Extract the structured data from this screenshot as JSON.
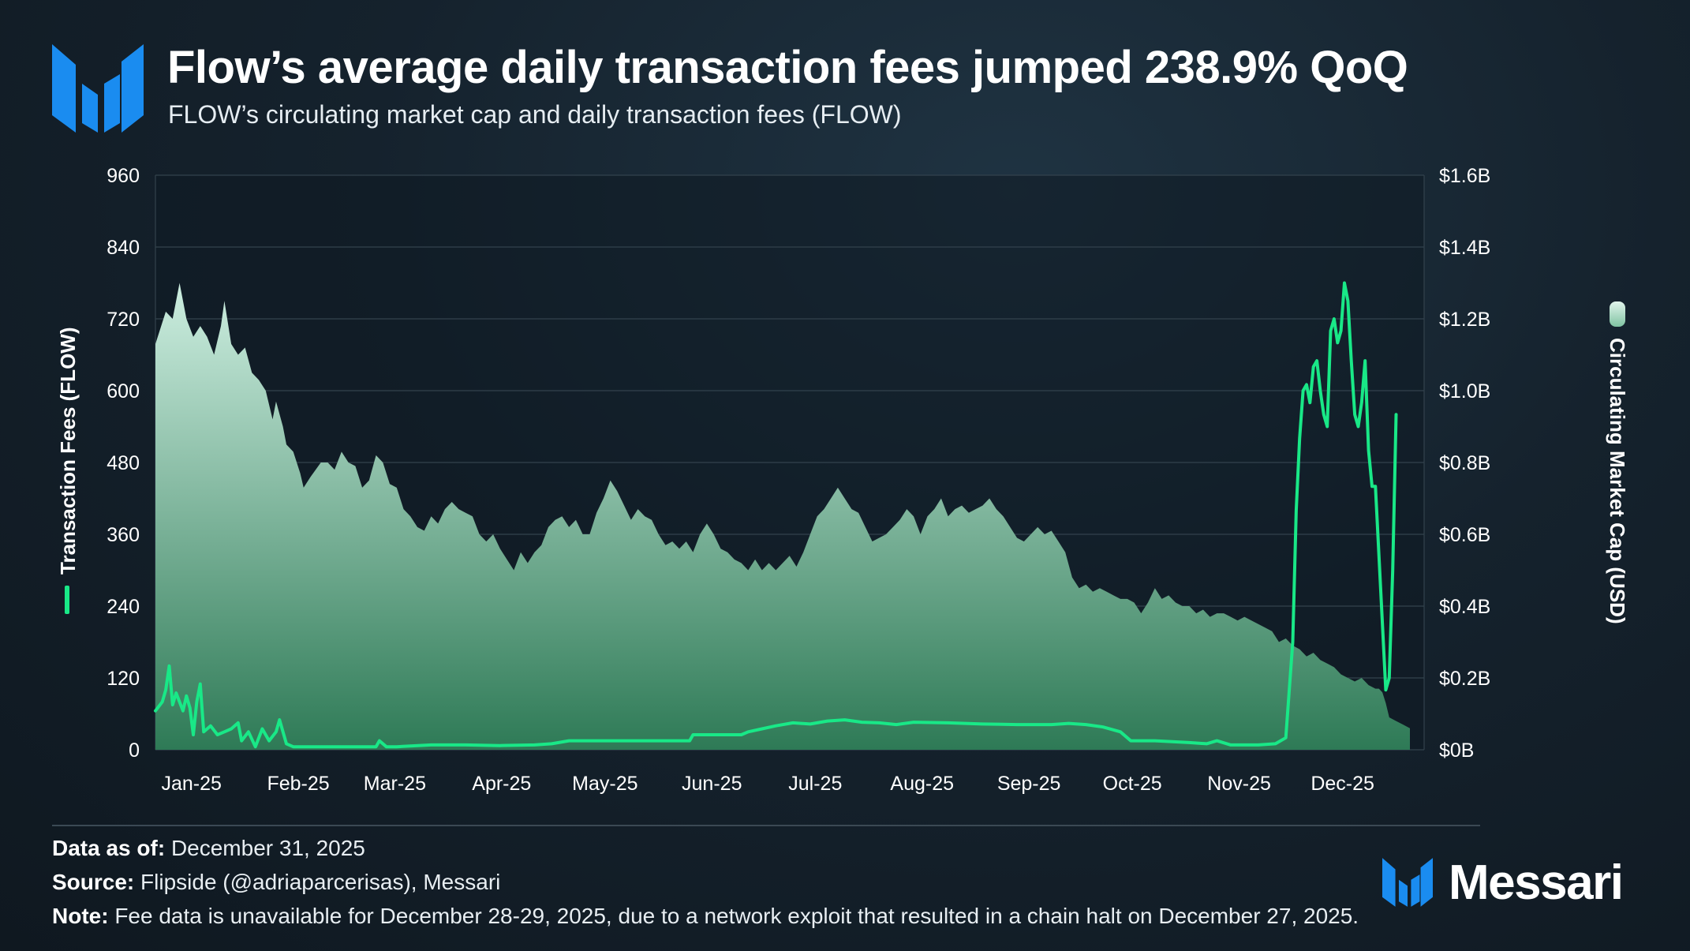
{
  "header": {
    "title": "Flow’s average daily transaction fees jumped 238.9% QoQ",
    "subtitle": "FLOW’s circulating market cap and daily transaction fees (FLOW)"
  },
  "colors": {
    "fees_line": "#19e887",
    "area_top": "#cdeee0",
    "area_bottom": "#2e7a56",
    "brand_blue": "#1a8cf0"
  },
  "icons": {
    "logo": "messari-logo-icon",
    "legend_fees": "line-legend-icon",
    "legend_mcap": "area-legend-icon"
  },
  "chart_data": {
    "type": "line+area",
    "title": "FLOW’s circulating market cap and daily transaction fees (FLOW)",
    "x_tick_labels": [
      "Jan-25",
      "Feb-25",
      "Mar-25",
      "Apr-25",
      "May-25",
      "Jun-25",
      "Jul-25",
      "Aug-25",
      "Sep-25",
      "Oct-25",
      "Nov-25",
      "Dec-25"
    ],
    "x_range_days": [
      0,
      364
    ],
    "y_left": {
      "label": "Transaction Fees (FLOW)",
      "range": [
        0,
        960
      ],
      "ticks": [
        "960",
        "840",
        "720",
        "600",
        "480",
        "360",
        "240",
        "120",
        "0"
      ]
    },
    "y_right": {
      "label": "Circulating Market Cap (USD)",
      "range": [
        0,
        1.6
      ],
      "unit": "$B",
      "ticks": [
        "$1.6B",
        "$1.4B",
        "$1.2B",
        "$1.0B",
        "$0.8B",
        "$0.6B",
        "$0.4B",
        "$0.2B",
        "$0B"
      ]
    },
    "series": [
      {
        "name": "Circulating Market Cap (USD)",
        "axis": "right",
        "type": "area",
        "unit": "USD billions",
        "points": [
          [
            0,
            1.13
          ],
          [
            3,
            1.22
          ],
          [
            5,
            1.2
          ],
          [
            6,
            1.25
          ],
          [
            7,
            1.3
          ],
          [
            9,
            1.2
          ],
          [
            11,
            1.15
          ],
          [
            13,
            1.18
          ],
          [
            15,
            1.15
          ],
          [
            17,
            1.1
          ],
          [
            19,
            1.18
          ],
          [
            20,
            1.25
          ],
          [
            22,
            1.13
          ],
          [
            24,
            1.1
          ],
          [
            26,
            1.12
          ],
          [
            28,
            1.05
          ],
          [
            30,
            1.03
          ],
          [
            32,
            1.0
          ],
          [
            34,
            0.92
          ],
          [
            35,
            0.97
          ],
          [
            37,
            0.9
          ],
          [
            38,
            0.85
          ],
          [
            40,
            0.83
          ],
          [
            42,
            0.77
          ],
          [
            43,
            0.73
          ],
          [
            45,
            0.76
          ],
          [
            48,
            0.8
          ],
          [
            50,
            0.8
          ],
          [
            52,
            0.78
          ],
          [
            54,
            0.83
          ],
          [
            56,
            0.8
          ],
          [
            58,
            0.79
          ],
          [
            60,
            0.73
          ],
          [
            62,
            0.75
          ],
          [
            64,
            0.82
          ],
          [
            66,
            0.8
          ],
          [
            68,
            0.74
          ],
          [
            70,
            0.73
          ],
          [
            72,
            0.67
          ],
          [
            74,
            0.65
          ],
          [
            76,
            0.62
          ],
          [
            78,
            0.61
          ],
          [
            80,
            0.65
          ],
          [
            82,
            0.63
          ],
          [
            84,
            0.67
          ],
          [
            86,
            0.69
          ],
          [
            88,
            0.67
          ],
          [
            90,
            0.66
          ],
          [
            92,
            0.65
          ],
          [
            94,
            0.6
          ],
          [
            96,
            0.58
          ],
          [
            98,
            0.6
          ],
          [
            100,
            0.56
          ],
          [
            102,
            0.53
          ],
          [
            104,
            0.5
          ],
          [
            106,
            0.55
          ],
          [
            108,
            0.52
          ],
          [
            110,
            0.55
          ],
          [
            112,
            0.57
          ],
          [
            114,
            0.62
          ],
          [
            116,
            0.64
          ],
          [
            118,
            0.65
          ],
          [
            120,
            0.62
          ],
          [
            122,
            0.64
          ],
          [
            124,
            0.6
          ],
          [
            126,
            0.6
          ],
          [
            128,
            0.66
          ],
          [
            130,
            0.7
          ],
          [
            132,
            0.75
          ],
          [
            134,
            0.72
          ],
          [
            136,
            0.68
          ],
          [
            138,
            0.64
          ],
          [
            140,
            0.67
          ],
          [
            142,
            0.65
          ],
          [
            144,
            0.64
          ],
          [
            146,
            0.6
          ],
          [
            148,
            0.57
          ],
          [
            150,
            0.58
          ],
          [
            152,
            0.56
          ],
          [
            154,
            0.58
          ],
          [
            156,
            0.55
          ],
          [
            158,
            0.6
          ],
          [
            160,
            0.63
          ],
          [
            162,
            0.6
          ],
          [
            164,
            0.56
          ],
          [
            166,
            0.55
          ],
          [
            168,
            0.53
          ],
          [
            170,
            0.52
          ],
          [
            172,
            0.5
          ],
          [
            174,
            0.53
          ],
          [
            176,
            0.5
          ],
          [
            178,
            0.52
          ],
          [
            180,
            0.5
          ],
          [
            182,
            0.52
          ],
          [
            184,
            0.54
          ],
          [
            186,
            0.51
          ],
          [
            188,
            0.55
          ],
          [
            190,
            0.6
          ],
          [
            192,
            0.65
          ],
          [
            194,
            0.67
          ],
          [
            196,
            0.7
          ],
          [
            198,
            0.73
          ],
          [
            200,
            0.7
          ],
          [
            202,
            0.67
          ],
          [
            204,
            0.66
          ],
          [
            206,
            0.62
          ],
          [
            208,
            0.58
          ],
          [
            210,
            0.59
          ],
          [
            212,
            0.6
          ],
          [
            214,
            0.62
          ],
          [
            216,
            0.64
          ],
          [
            218,
            0.67
          ],
          [
            220,
            0.65
          ],
          [
            222,
            0.6
          ],
          [
            224,
            0.65
          ],
          [
            226,
            0.67
          ],
          [
            228,
            0.7
          ],
          [
            230,
            0.65
          ],
          [
            232,
            0.67
          ],
          [
            234,
            0.68
          ],
          [
            236,
            0.66
          ],
          [
            238,
            0.67
          ],
          [
            240,
            0.68
          ],
          [
            242,
            0.7
          ],
          [
            244,
            0.67
          ],
          [
            246,
            0.65
          ],
          [
            248,
            0.62
          ],
          [
            250,
            0.59
          ],
          [
            252,
            0.58
          ],
          [
            254,
            0.6
          ],
          [
            256,
            0.62
          ],
          [
            258,
            0.6
          ],
          [
            260,
            0.61
          ],
          [
            262,
            0.58
          ],
          [
            264,
            0.55
          ],
          [
            266,
            0.48
          ],
          [
            268,
            0.45
          ],
          [
            270,
            0.46
          ],
          [
            272,
            0.44
          ],
          [
            274,
            0.45
          ],
          [
            276,
            0.44
          ],
          [
            278,
            0.43
          ],
          [
            280,
            0.42
          ],
          [
            282,
            0.42
          ],
          [
            284,
            0.41
          ],
          [
            286,
            0.38
          ],
          [
            288,
            0.41
          ],
          [
            290,
            0.45
          ],
          [
            292,
            0.42
          ],
          [
            294,
            0.43
          ],
          [
            296,
            0.41
          ],
          [
            298,
            0.4
          ],
          [
            300,
            0.4
          ],
          [
            302,
            0.38
          ],
          [
            304,
            0.39
          ],
          [
            306,
            0.37
          ],
          [
            308,
            0.38
          ],
          [
            310,
            0.38
          ],
          [
            312,
            0.37
          ],
          [
            314,
            0.36
          ],
          [
            316,
            0.37
          ],
          [
            318,
            0.36
          ],
          [
            320,
            0.35
          ],
          [
            322,
            0.34
          ],
          [
            324,
            0.33
          ],
          [
            326,
            0.3
          ],
          [
            328,
            0.31
          ],
          [
            330,
            0.29
          ],
          [
            332,
            0.28
          ],
          [
            334,
            0.26
          ],
          [
            336,
            0.27
          ],
          [
            338,
            0.25
          ],
          [
            340,
            0.24
          ],
          [
            342,
            0.23
          ],
          [
            344,
            0.21
          ],
          [
            346,
            0.2
          ],
          [
            348,
            0.19
          ],
          [
            350,
            0.2
          ],
          [
            352,
            0.18
          ],
          [
            354,
            0.17
          ],
          [
            355,
            0.17
          ],
          [
            356,
            0.16
          ],
          [
            357,
            0.13
          ],
          [
            358,
            0.09
          ],
          [
            360,
            0.08
          ],
          [
            362,
            0.07
          ],
          [
            364,
            0.06
          ]
        ]
      },
      {
        "name": "Transaction Fees (FLOW)",
        "axis": "left",
        "type": "line",
        "unit": "FLOW",
        "points": [
          [
            0,
            65
          ],
          [
            2,
            80
          ],
          [
            3,
            100
          ],
          [
            4,
            140
          ],
          [
            5,
            75
          ],
          [
            6,
            95
          ],
          [
            8,
            65
          ],
          [
            9,
            90
          ],
          [
            10,
            70
          ],
          [
            11,
            25
          ],
          [
            12,
            80
          ],
          [
            13,
            110
          ],
          [
            14,
            30
          ],
          [
            16,
            40
          ],
          [
            18,
            25
          ],
          [
            20,
            30
          ],
          [
            22,
            35
          ],
          [
            24,
            45
          ],
          [
            25,
            15
          ],
          [
            27,
            30
          ],
          [
            29,
            5
          ],
          [
            31,
            35
          ],
          [
            33,
            15
          ],
          [
            35,
            30
          ],
          [
            36,
            50
          ],
          [
            38,
            10
          ],
          [
            40,
            5
          ],
          [
            45,
            5
          ],
          [
            50,
            5
          ],
          [
            55,
            5
          ],
          [
            60,
            5
          ],
          [
            64,
            5
          ],
          [
            65,
            15
          ],
          [
            67,
            5
          ],
          [
            70,
            5
          ],
          [
            80,
            8
          ],
          [
            90,
            8
          ],
          [
            100,
            7
          ],
          [
            110,
            8
          ],
          [
            115,
            10
          ],
          [
            120,
            15
          ],
          [
            130,
            15
          ],
          [
            140,
            15
          ],
          [
            150,
            15
          ],
          [
            155,
            15
          ],
          [
            156,
            25
          ],
          [
            160,
            25
          ],
          [
            170,
            25
          ],
          [
            172,
            30
          ],
          [
            176,
            35
          ],
          [
            180,
            40
          ],
          [
            185,
            45
          ],
          [
            190,
            43
          ],
          [
            195,
            48
          ],
          [
            200,
            50
          ],
          [
            205,
            46
          ],
          [
            210,
            45
          ],
          [
            215,
            42
          ],
          [
            220,
            46
          ],
          [
            230,
            45
          ],
          [
            240,
            43
          ],
          [
            250,
            42
          ],
          [
            260,
            42
          ],
          [
            265,
            44
          ],
          [
            270,
            42
          ],
          [
            275,
            38
          ],
          [
            280,
            30
          ],
          [
            283,
            15
          ],
          [
            290,
            15
          ],
          [
            300,
            12
          ],
          [
            305,
            10
          ],
          [
            308,
            15
          ],
          [
            312,
            8
          ],
          [
            320,
            8
          ],
          [
            325,
            10
          ],
          [
            328,
            20
          ],
          [
            330,
            180
          ],
          [
            331,
            400
          ],
          [
            332,
            520
          ],
          [
            333,
            600
          ],
          [
            334,
            610
          ],
          [
            335,
            580
          ],
          [
            336,
            640
          ],
          [
            337,
            650
          ],
          [
            338,
            600
          ],
          [
            339,
            560
          ],
          [
            340,
            540
          ],
          [
            341,
            700
          ],
          [
            342,
            720
          ],
          [
            343,
            680
          ],
          [
            344,
            700
          ],
          [
            345,
            780
          ],
          [
            346,
            750
          ],
          [
            347,
            650
          ],
          [
            348,
            560
          ],
          [
            349,
            540
          ],
          [
            350,
            580
          ],
          [
            351,
            650
          ],
          [
            352,
            500
          ],
          [
            353,
            440
          ],
          [
            354,
            440
          ],
          [
            357,
            100
          ],
          [
            358,
            120
          ],
          [
            359,
            300
          ],
          [
            360,
            560
          ]
        ]
      }
    ],
    "legend": [
      {
        "label": "Transaction Fees (FLOW)",
        "position": "left-axis"
      },
      {
        "label": "Circulating Market Cap (USD)",
        "position": "right-axis"
      }
    ]
  },
  "footer": {
    "data_as_of_label": "Data as of:",
    "data_as_of_value": "December 31, 2025",
    "source_label": "Source:",
    "source_value": "Flipside (@adriaparcerisas), Messari",
    "note_label": "Note:",
    "note_value": "Fee data is unavailable for December 28-29, 2025, due to a network exploit that resulted in a chain halt on December 27, 2025."
  },
  "brand": {
    "name": "Messari"
  }
}
